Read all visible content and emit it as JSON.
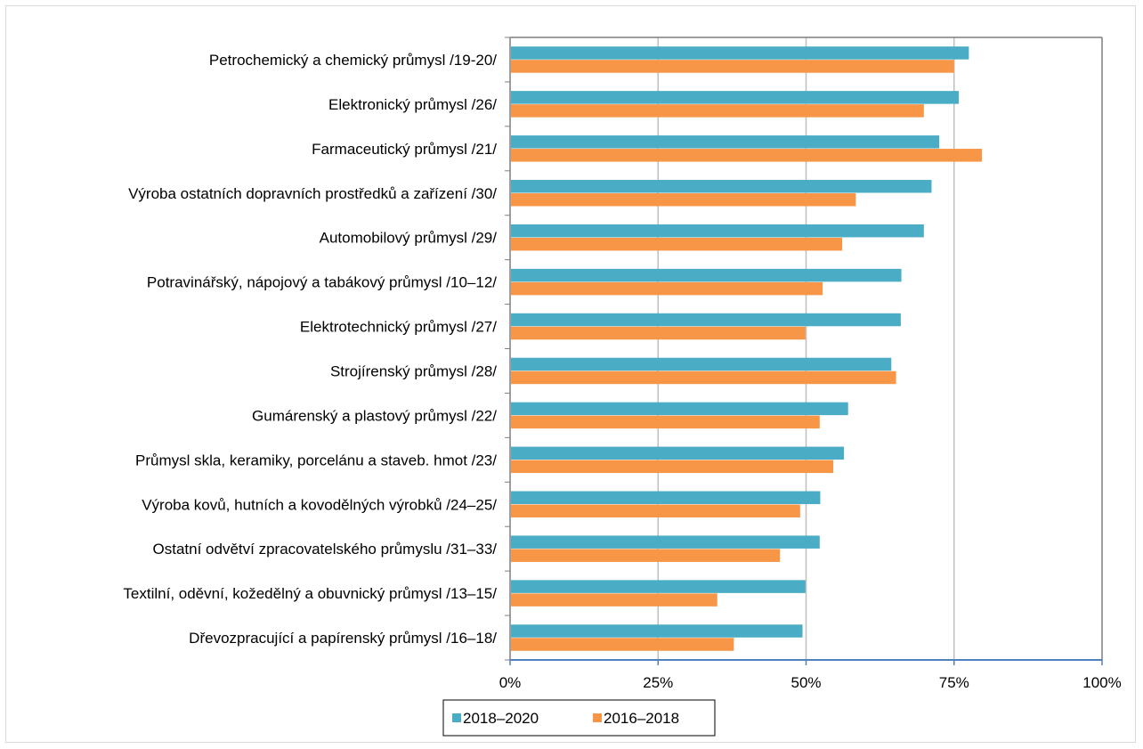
{
  "chart_data": {
    "type": "bar",
    "orientation": "horizontal",
    "title": "",
    "xlabel": "",
    "ylabel": "",
    "xlim": [
      0,
      100
    ],
    "x_ticks": [
      "0%",
      "25%",
      "50%",
      "75%",
      "100%"
    ],
    "grid": true,
    "legend_position": "bottom",
    "categories": [
      "Petrochemický a chemický průmysl /19-20/",
      "Elektronický průmysl /26/",
      "Farmaceutický průmysl /21/",
      "Výroba ostatních dopravních prostředků a zařízení /30/",
      "Automobilový průmysl /29/",
      "Potravinářský, nápojový a tabákový průmysl /10–12/",
      "Elektrotechnický průmysl /27/",
      "Strojírenský průmysl /28/",
      "Gumárenský a plastový průmysl /22/",
      "Průmysl skla, keramiky, porcelánu a staveb. hmot /23/",
      "Výroba kovů, hutních a kovodělných výrobků /24–25/",
      "Ostatní odvětví zpracovatelského průmyslu /31–33/",
      "Textilní, oděvní, kožedělný a obuvnický průmysl /13–15/",
      "Dřevozpracující a papírenský průmysl /16–18/"
    ],
    "series": [
      {
        "name": "2018–2020",
        "color": "#4bacc6",
        "values": [
          77.5,
          75.8,
          72.5,
          71.2,
          69.9,
          66.1,
          66.0,
          64.4,
          57.1,
          56.4,
          52.4,
          52.3,
          49.9,
          49.4
        ]
      },
      {
        "name": "2016–2018",
        "color": "#f79646",
        "values": [
          75.0,
          69.9,
          79.7,
          58.4,
          56.1,
          52.8,
          49.9,
          65.2,
          52.3,
          54.6,
          49.0,
          45.6,
          35.0,
          37.8
        ]
      }
    ]
  }
}
